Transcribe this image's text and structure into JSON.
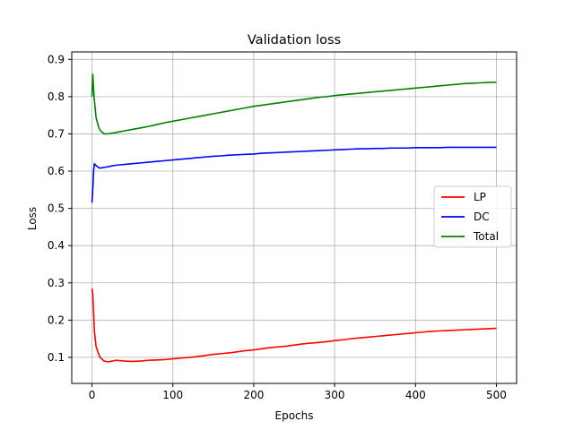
{
  "chart_data": {
    "type": "line",
    "title": "Validation loss",
    "xlabel": "Epochs",
    "ylabel": "Loss",
    "xlim": [
      -25,
      525
    ],
    "ylim": [
      0.03,
      0.92
    ],
    "xticks": [
      0,
      100,
      200,
      300,
      400,
      500
    ],
    "yticks": [
      0.1,
      0.2,
      0.3,
      0.4,
      0.5,
      0.6,
      0.7,
      0.8,
      0.9
    ],
    "xtick_labels": [
      "0",
      "100",
      "200",
      "300",
      "400",
      "500"
    ],
    "ytick_labels": [
      "0.1",
      "0.2",
      "0.3",
      "0.4",
      "0.5",
      "0.6",
      "0.7",
      "0.8",
      "0.9"
    ],
    "grid": true,
    "legend": "center-right",
    "series": [
      {
        "name": "LP",
        "color": "#ff0000",
        "x": [
          0,
          1,
          2,
          3,
          5,
          8,
          10,
          15,
          20,
          25,
          30,
          40,
          50,
          60,
          70,
          80,
          90,
          100,
          110,
          120,
          130,
          140,
          150,
          160,
          170,
          180,
          190,
          200,
          210,
          220,
          230,
          240,
          250,
          260,
          270,
          280,
          290,
          300,
          310,
          320,
          330,
          340,
          350,
          360,
          370,
          380,
          390,
          400,
          410,
          420,
          430,
          440,
          450,
          460,
          470,
          480,
          490,
          500
        ],
        "values": [
          0.285,
          0.27,
          0.22,
          0.17,
          0.13,
          0.11,
          0.1,
          0.09,
          0.088,
          0.09,
          0.092,
          0.09,
          0.089,
          0.09,
          0.092,
          0.093,
          0.094,
          0.096,
          0.098,
          0.1,
          0.102,
          0.105,
          0.108,
          0.11,
          0.112,
          0.115,
          0.118,
          0.12,
          0.123,
          0.126,
          0.128,
          0.13,
          0.133,
          0.136,
          0.138,
          0.14,
          0.142,
          0.145,
          0.147,
          0.15,
          0.152,
          0.154,
          0.156,
          0.158,
          0.16,
          0.162,
          0.164,
          0.166,
          0.168,
          0.17,
          0.171,
          0.172,
          0.173,
          0.174,
          0.175,
          0.176,
          0.177,
          0.178
        ]
      },
      {
        "name": "DC",
        "color": "#0000ff",
        "x": [
          0,
          1,
          2,
          3,
          5,
          8,
          10,
          15,
          20,
          25,
          30,
          40,
          50,
          60,
          70,
          80,
          90,
          100,
          110,
          120,
          130,
          140,
          150,
          160,
          170,
          180,
          190,
          200,
          210,
          220,
          230,
          240,
          250,
          260,
          270,
          280,
          290,
          300,
          310,
          320,
          330,
          340,
          350,
          360,
          370,
          380,
          390,
          400,
          410,
          420,
          430,
          440,
          450,
          460,
          470,
          480,
          490,
          500
        ],
        "values": [
          0.515,
          0.55,
          0.6,
          0.62,
          0.615,
          0.61,
          0.608,
          0.61,
          0.612,
          0.614,
          0.616,
          0.618,
          0.62,
          0.622,
          0.624,
          0.626,
          0.628,
          0.63,
          0.632,
          0.634,
          0.636,
          0.638,
          0.64,
          0.641,
          0.643,
          0.644,
          0.645,
          0.646,
          0.648,
          0.649,
          0.65,
          0.651,
          0.652,
          0.653,
          0.654,
          0.655,
          0.656,
          0.657,
          0.658,
          0.659,
          0.66,
          0.66,
          0.661,
          0.661,
          0.662,
          0.662,
          0.662,
          0.663,
          0.663,
          0.663,
          0.663,
          0.664,
          0.664,
          0.664,
          0.664,
          0.664,
          0.664,
          0.664
        ]
      },
      {
        "name": "Total",
        "color": "#008000",
        "x": [
          0,
          1,
          2,
          3,
          5,
          8,
          10,
          15,
          20,
          25,
          30,
          40,
          50,
          60,
          70,
          80,
          90,
          100,
          110,
          120,
          130,
          140,
          150,
          160,
          170,
          180,
          190,
          200,
          210,
          220,
          230,
          240,
          250,
          260,
          270,
          280,
          290,
          300,
          310,
          320,
          330,
          340,
          350,
          360,
          370,
          380,
          390,
          400,
          410,
          420,
          430,
          440,
          450,
          460,
          470,
          480,
          490,
          500
        ],
        "values": [
          0.8,
          0.86,
          0.82,
          0.79,
          0.745,
          0.72,
          0.71,
          0.7,
          0.7,
          0.702,
          0.704,
          0.708,
          0.712,
          0.716,
          0.72,
          0.725,
          0.73,
          0.734,
          0.738,
          0.742,
          0.746,
          0.75,
          0.754,
          0.758,
          0.762,
          0.766,
          0.77,
          0.774,
          0.777,
          0.78,
          0.783,
          0.786,
          0.789,
          0.792,
          0.795,
          0.798,
          0.8,
          0.803,
          0.805,
          0.807,
          0.809,
          0.811,
          0.813,
          0.815,
          0.817,
          0.819,
          0.821,
          0.823,
          0.825,
          0.827,
          0.829,
          0.831,
          0.833,
          0.835,
          0.836,
          0.837,
          0.838,
          0.839
        ]
      }
    ]
  }
}
